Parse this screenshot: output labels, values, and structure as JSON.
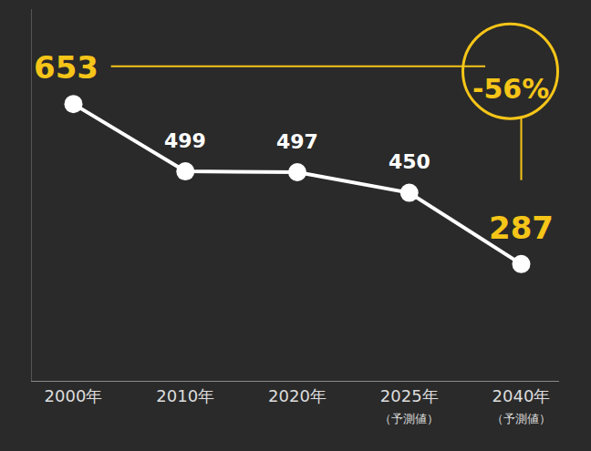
{
  "chart_data": {
    "type": "line",
    "categories": [
      "2000年",
      "2010年",
      "2020年",
      "2025年",
      "2040年"
    ],
    "category_notes": [
      null,
      null,
      null,
      "（予測値）",
      "（予測値）"
    ],
    "values": [
      653,
      499,
      497,
      450,
      287
    ],
    "color": "#ffffff",
    "data_labels": true,
    "ylim": [
      20,
      870
    ],
    "yticks": [],
    "tick_labels": "x",
    "grid": false,
    "annotations": [
      {
        "text": "-56%"
      }
    ]
  }
}
